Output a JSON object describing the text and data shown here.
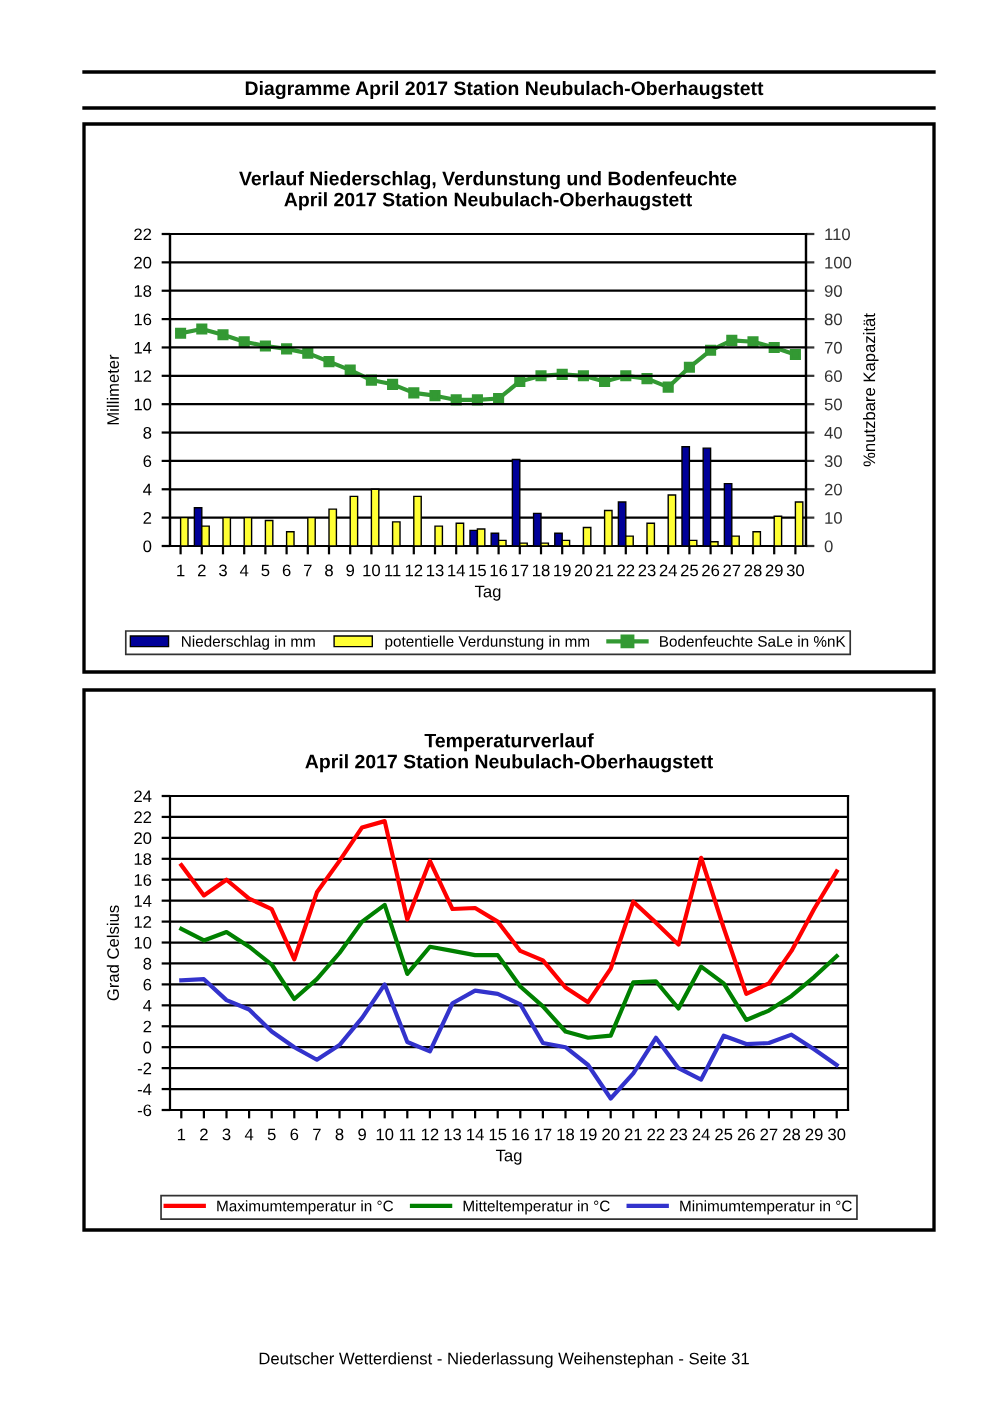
{
  "chart_data": [
    {
      "type": "bar",
      "title": "Verlauf Niederschlag, Verdunstung und Bodenfeuchte\nApril 2017 Station Neubulach-Oberhaugstett",
      "xlabel": "Tag",
      "ylabel": "Millimeter",
      "y2label": "%nutzbare Kapazität",
      "annotations": [
        "Diagramme April 2017 Station Neubulach-Oberhaugstett"
      ],
      "categories": [
        "1",
        "2",
        "3",
        "4",
        "5",
        "6",
        "7",
        "8",
        "9",
        "10",
        "11",
        "12",
        "13",
        "14",
        "15",
        "16",
        "17",
        "18",
        "19",
        "20",
        "21",
        "22",
        "23",
        "24",
        "25",
        "26",
        "27",
        "28",
        "29",
        "30"
      ],
      "series": [
        {
          "name": "Niederschlag in mm",
          "type": "bar",
          "color": "#000099",
          "values": [
            0,
            2.7,
            0,
            0,
            0,
            0,
            0,
            0,
            0,
            0,
            0,
            0,
            0,
            0,
            1.1,
            0.9,
            6.1,
            2.3,
            0.9,
            0,
            0,
            3.1,
            0,
            0,
            7.0,
            6.9,
            4.4,
            0,
            0,
            0
          ]
        },
        {
          "name": "potentielle Verdunstung in mm",
          "type": "bar",
          "color": "#ffff33",
          "values": [
            2.0,
            1.4,
            2.0,
            2.0,
            1.8,
            1.0,
            2.0,
            2.6,
            3.5,
            4.0,
            1.7,
            3.5,
            1.4,
            1.6,
            1.2,
            0.4,
            0.2,
            0.2,
            0.4,
            1.3,
            2.5,
            0.7,
            1.6,
            3.6,
            0.4,
            0.3,
            0.7,
            1.0,
            2.1,
            3.1
          ]
        },
        {
          "name": "Bodenfeuchte SaLe in %nK",
          "type": "line",
          "axis": "y2",
          "marker": "square",
          "color": "#339933",
          "values": [
            75,
            76.5,
            74.5,
            72,
            70.5,
            69.5,
            68,
            65,
            62,
            58.5,
            57,
            54,
            53,
            51.5,
            51.5,
            52,
            58,
            60,
            60.5,
            60,
            58,
            60,
            59,
            56,
            63,
            69,
            72.5,
            72,
            70,
            67.5
          ]
        }
      ],
      "ylim": [
        0,
        22
      ],
      "yticks": [
        0,
        2,
        4,
        6,
        8,
        10,
        12,
        14,
        16,
        18,
        20,
        22
      ],
      "y2lim": [
        0,
        110
      ],
      "y2ticks": [
        0,
        10,
        20,
        30,
        40,
        50,
        60,
        70,
        80,
        90,
        100,
        110
      ],
      "grid": "y",
      "legend": "bottom"
    },
    {
      "type": "line",
      "title": "Temperaturverlauf\nApril 2017 Station Neubulach-Oberhaugstett",
      "xlabel": "Tag",
      "ylabel": "Grad Celsius",
      "annotations": [
        "Deutscher Wetterdienst - Niederlassung Weihenstephan - Seite 31"
      ],
      "categories": [
        "1",
        "2",
        "3",
        "4",
        "5",
        "6",
        "7",
        "8",
        "9",
        "10",
        "11",
        "12",
        "13",
        "14",
        "15",
        "16",
        "17",
        "18",
        "19",
        "20",
        "21",
        "22",
        "23",
        "24",
        "25",
        "26",
        "27",
        "28",
        "29",
        "30"
      ],
      "series": [
        {
          "name": "Maximumtemperatur in °C",
          "color": "#ff0000",
          "values": [
            17.4,
            14.5,
            16,
            14.2,
            13.2,
            8.4,
            14.8,
            17.8,
            21,
            21.6,
            12.2,
            17.8,
            13.2,
            13.3,
            12,
            9.2,
            8.3,
            5.7,
            4.3,
            7.5,
            13.9,
            11.9,
            9.8,
            18.1,
            11.4,
            5.1,
            6.1,
            9.2,
            13.2,
            16.8
          ]
        },
        {
          "name": "Mitteltemperatur in °C",
          "color": "#008000",
          "values": [
            11.3,
            10.2,
            11,
            9.6,
            7.9,
            4.6,
            6.5,
            9,
            12,
            13.6,
            7,
            9.6,
            9.2,
            8.8,
            8.8,
            5.8,
            3.9,
            1.5,
            0.9,
            1.1,
            6.2,
            6.3,
            3.7,
            7.7,
            6.1,
            2.6,
            3.5,
            4.9,
            6.7,
            8.7
          ]
        },
        {
          "name": "Minimumtemperatur in °C",
          "color": "#3333cc",
          "values": [
            6.4,
            6.5,
            4.5,
            3.6,
            1.5,
            0,
            -1.2,
            0.2,
            2.8,
            6,
            0.5,
            -0.4,
            4.2,
            5.4,
            5.1,
            4.1,
            0.4,
            0,
            -1.7,
            -4.9,
            -2.5,
            0.9,
            -2,
            -3.1,
            1.1,
            0.3,
            0.4,
            1.2,
            -0.2,
            -1.7
          ]
        }
      ],
      "ylim": [
        -6,
        24
      ],
      "yticks": [
        -6,
        -4,
        -2,
        0,
        2,
        4,
        6,
        8,
        10,
        12,
        14,
        16,
        18,
        20,
        22,
        24
      ],
      "grid": "y",
      "legend": "bottom"
    }
  ]
}
